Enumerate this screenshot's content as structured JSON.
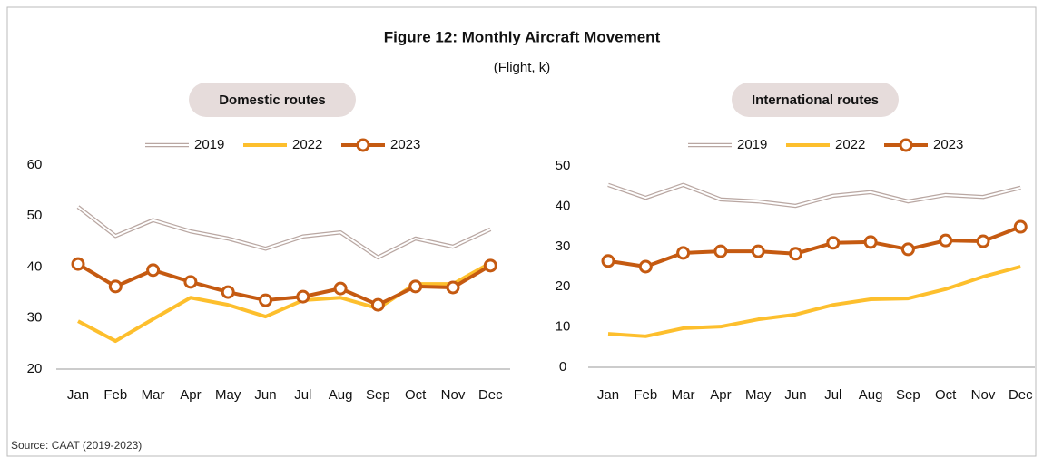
{
  "title": "Figure 12: Monthly Aircraft Movement",
  "subtitle": "(Flight, k)",
  "source": "Source: CAAT (2019-2023)",
  "chart_data": [
    {
      "type": "line",
      "title": "Domestic routes",
      "categories": [
        "Jan",
        "Feb",
        "Mar",
        "Apr",
        "May",
        "Jun",
        "Jul",
        "Aug",
        "Sep",
        "Oct",
        "Nov",
        "Dec"
      ],
      "series": [
        {
          "name": "2019",
          "color": "#b9a7a2",
          "style": "double",
          "values": [
            51.8,
            46.1,
            49.2,
            47,
            45.6,
            43.6,
            46,
            46.8,
            41.9,
            45.6,
            44,
            47.4
          ]
        },
        {
          "name": "2022",
          "color": "#fdbf2d",
          "values": [
            29.4,
            25.5,
            29.8,
            34,
            32.6,
            30.3,
            33.5,
            34,
            31.9,
            36.7,
            36.7,
            40.8
          ]
        },
        {
          "name": "2023",
          "color": "#c55a11",
          "marker": "circle",
          "values": [
            40.6,
            36.2,
            39.4,
            37.1,
            35.1,
            33.5,
            34.2,
            35.8,
            32.6,
            36.2,
            36,
            40.3
          ]
        }
      ],
      "ylim": [
        20,
        60
      ],
      "yticks": [
        20,
        30,
        40,
        50,
        60
      ]
    },
    {
      "type": "line",
      "title": "International routes",
      "categories": [
        "Jan",
        "Feb",
        "Mar",
        "Apr",
        "May",
        "Jun",
        "Jul",
        "Aug",
        "Sep",
        "Oct",
        "Nov",
        "Dec"
      ],
      "series": [
        {
          "name": "2019",
          "color": "#b9a7a2",
          "style": "double",
          "values": [
            45.3,
            42.1,
            45.3,
            41.7,
            41.2,
            40.1,
            42.6,
            43.5,
            41.2,
            42.8,
            42.3,
            44.6
          ]
        },
        {
          "name": "2022",
          "color": "#fdbf2d",
          "values": [
            8.3,
            7.7,
            9.7,
            10.1,
            11.9,
            13.1,
            15.5,
            16.9,
            17.1,
            19.4,
            22.5,
            25
          ]
        },
        {
          "name": "2023",
          "color": "#c55a11",
          "marker": "circle",
          "values": [
            26.4,
            25,
            28.4,
            28.8,
            28.8,
            28.2,
            30.9,
            31.1,
            29.3,
            31.5,
            31.3,
            34.9
          ]
        }
      ],
      "ylim": [
        0,
        50
      ],
      "yticks": [
        0,
        10,
        20,
        30,
        40,
        50
      ]
    }
  ]
}
